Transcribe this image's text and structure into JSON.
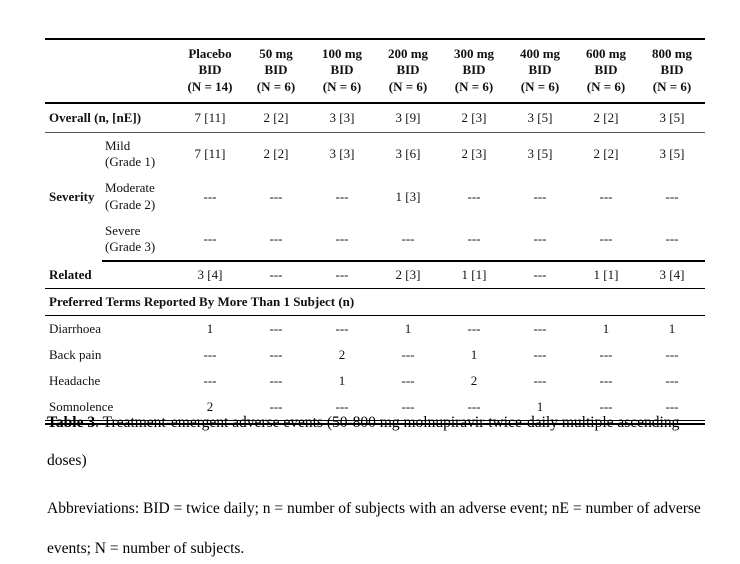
{
  "table": {
    "columns": [
      {
        "dose": "Placebo",
        "route": "BID",
        "n": "(N = 14)"
      },
      {
        "dose": "50 mg",
        "route": "BID",
        "n": "(N = 6)"
      },
      {
        "dose": "100 mg",
        "route": "BID",
        "n": "(N = 6)"
      },
      {
        "dose": "200 mg",
        "route": "BID",
        "n": "(N = 6)"
      },
      {
        "dose": "300 mg",
        "route": "BID",
        "n": "(N = 6)"
      },
      {
        "dose": "400 mg",
        "route": "BID",
        "n": "(N = 6)"
      },
      {
        "dose": "600 mg",
        "route": "BID",
        "n": "(N = 6)"
      },
      {
        "dose": "800 mg",
        "route": "BID",
        "n": "(N = 6)"
      }
    ],
    "overall": {
      "label": "Overall (n, [nE])",
      "values": [
        "7 [11]",
        "2 [2]",
        "3 [3]",
        "3 [9]",
        "2 [3]",
        "3 [5]",
        "2 [2]",
        "3 [5]"
      ]
    },
    "severity": {
      "label": "Severity",
      "rows": [
        {
          "label_line1": "Mild",
          "label_line2": "(Grade 1)",
          "values": [
            "7 [11]",
            "2 [2]",
            "3 [3]",
            "3 [6]",
            "2 [3]",
            "3 [5]",
            "2 [2]",
            "3 [5]"
          ]
        },
        {
          "label_line1": "Moderate",
          "label_line2": "(Grade 2)",
          "values": [
            "---",
            "---",
            "---",
            "1 [3]",
            "---",
            "---",
            "---",
            "---"
          ]
        },
        {
          "label_line1": "Severe",
          "label_line2": "(Grade 3)",
          "values": [
            "---",
            "---",
            "---",
            "---",
            "---",
            "---",
            "---",
            "---"
          ]
        }
      ]
    },
    "related": {
      "label": "Related",
      "values": [
        "3 [4]",
        "---",
        "---",
        "2 [3]",
        "1 [1]",
        "---",
        "1 [1]",
        "3 [4]"
      ]
    },
    "preferred_terms_header": "Preferred Terms Reported By More Than 1 Subject (n)",
    "preferred_terms": [
      {
        "label": "Diarrhoea",
        "values": [
          "1",
          "---",
          "---",
          "1",
          "---",
          "---",
          "1",
          "1"
        ]
      },
      {
        "label": "Back pain",
        "values": [
          "---",
          "---",
          "2",
          "---",
          "1",
          "---",
          "---",
          "---"
        ]
      },
      {
        "label": "Headache",
        "values": [
          "---",
          "---",
          "1",
          "---",
          "2",
          "---",
          "---",
          "---"
        ]
      },
      {
        "label": "Somnolence",
        "values": [
          "2",
          "---",
          "---",
          "---",
          "---",
          "1",
          "---",
          "---"
        ]
      }
    ]
  },
  "caption": {
    "label": "Table 3",
    "text": ". Treatment-emergent adverse events (50-800 mg molnupiravir twice-daily multiple ascending doses)"
  },
  "abbreviations": "Abbreviations: BID = twice daily; n = number of subjects with an adverse event; nE = number of adverse events; N = number of subjects."
}
